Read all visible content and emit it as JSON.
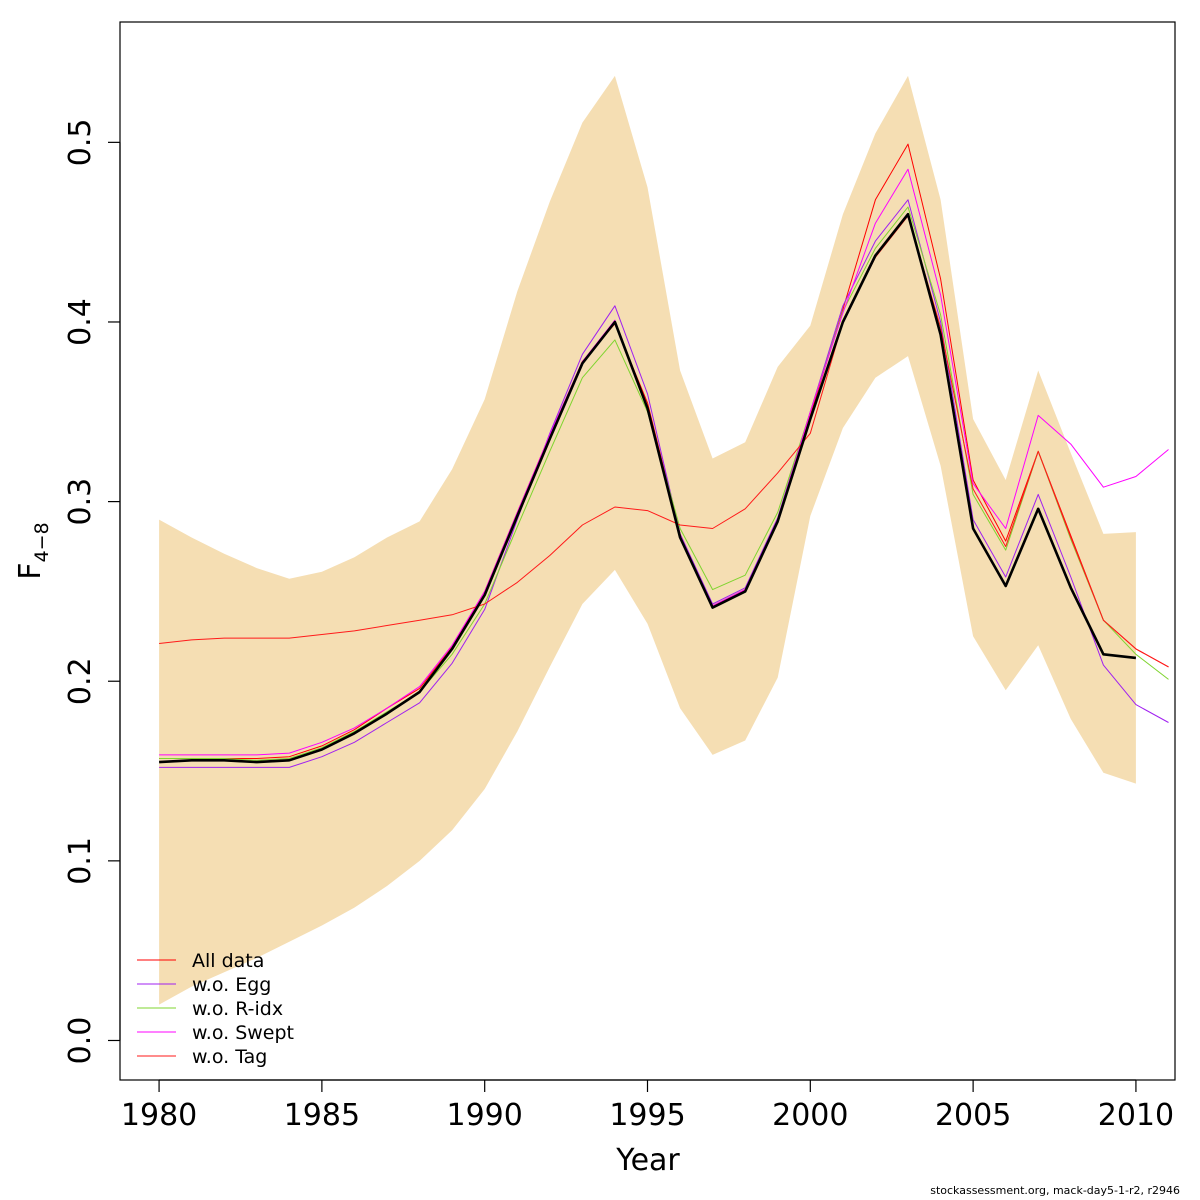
{
  "chart_data": {
    "type": "line",
    "xlabel": "Year",
    "ylabel": "F",
    "ylabel_bar": "‾",
    "ylabel_sub": "4−8",
    "xlim": [
      1978.8,
      2011.2
    ],
    "ylim": [
      -0.022,
      0.567
    ],
    "x_ticks": [
      1980,
      1985,
      1990,
      1995,
      2000,
      2005,
      2010
    ],
    "y_ticks": [
      0.0,
      0.1,
      0.2,
      0.3,
      0.4,
      0.5
    ],
    "y_tick_labels": [
      "0.0",
      "0.1",
      "0.2",
      "0.3",
      "0.4",
      "0.5"
    ],
    "grid": false,
    "legend_position": "bottom-left",
    "legend": [
      "All data",
      "w.o. Egg",
      "w.o. R-idx",
      "w.o. Swept",
      "w.o. Tag"
    ],
    "footer": "stockassessment.org, mack-day5-1-r2, r2946",
    "band": {
      "color": "#f5deb3",
      "x": [
        1980,
        1981,
        1982,
        1983,
        1984,
        1985,
        1986,
        1987,
        1988,
        1989,
        1990,
        1991,
        1992,
        1993,
        1994,
        1995,
        1996,
        1997,
        1998,
        1999,
        2000,
        2001,
        2002,
        2003,
        2004,
        2005,
        2006,
        2007,
        2008,
        2009,
        2010
      ],
      "upper": [
        0.29,
        0.28,
        0.271,
        0.263,
        0.257,
        0.261,
        0.269,
        0.28,
        0.289,
        0.318,
        0.357,
        0.417,
        0.467,
        0.511,
        0.537,
        0.475,
        0.373,
        0.324,
        0.333,
        0.375,
        0.398,
        0.46,
        0.505,
        0.537,
        0.468,
        0.346,
        0.312,
        0.373,
        0.327,
        0.282,
        0.283
      ],
      "lower": [
        0.02,
        0.03,
        0.038,
        0.046,
        0.055,
        0.064,
        0.074,
        0.086,
        0.1,
        0.117,
        0.14,
        0.172,
        0.208,
        0.243,
        0.262,
        0.232,
        0.185,
        0.159,
        0.167,
        0.202,
        0.292,
        0.341,
        0.369,
        0.381,
        0.32,
        0.225,
        0.195,
        0.22,
        0.179,
        0.149,
        0.143
      ]
    },
    "series": [
      {
        "color": "#000000",
        "width": 2.6,
        "x": [
          1980,
          1981,
          1982,
          1983,
          1984,
          1985,
          1986,
          1987,
          1988,
          1989,
          1990,
          1991,
          1992,
          1993,
          1994,
          1995,
          1996,
          1997,
          1998,
          1999,
          2000,
          2001,
          2002,
          2003,
          2004,
          2005,
          2006,
          2007,
          2008,
          2009,
          2010
        ],
        "values": [
          0.155,
          0.156,
          0.156,
          0.155,
          0.156,
          0.162,
          0.171,
          0.182,
          0.194,
          0.218,
          0.248,
          0.292,
          0.335,
          0.377,
          0.4,
          0.352,
          0.28,
          0.241,
          0.25,
          0.289,
          0.346,
          0.4,
          0.437,
          0.46,
          0.393,
          0.285,
          0.253,
          0.296,
          0.252,
          0.215,
          0.213
        ]
      },
      {
        "name": "All data",
        "color": "#ff0000",
        "width": 1,
        "x": [
          1980,
          1981,
          1982,
          1983,
          1984,
          1985,
          1986,
          1987,
          1988,
          1989,
          1990,
          1991,
          1992,
          1993,
          1994,
          1995,
          1996,
          1997,
          1998,
          1999,
          2000,
          2001,
          2002,
          2003,
          2004,
          2005,
          2006,
          2007,
          2008,
          2009,
          2010,
          2011
        ],
        "values": [
          0.157,
          0.157,
          0.157,
          0.157,
          0.158,
          0.164,
          0.173,
          0.185,
          0.196,
          0.219,
          0.25,
          0.294,
          0.337,
          0.378,
          0.399,
          0.355,
          0.282,
          0.242,
          0.251,
          0.29,
          0.348,
          0.407,
          0.468,
          0.499,
          0.424,
          0.312,
          0.278,
          0.328,
          0.281,
          0.234,
          0.218,
          0.208
        ]
      },
      {
        "name": "w.o. Egg",
        "color": "#a020f0",
        "width": 1,
        "x": [
          1980,
          1981,
          1982,
          1983,
          1984,
          1985,
          1986,
          1987,
          1988,
          1989,
          1990,
          1991,
          1992,
          1993,
          1994,
          1995,
          1996,
          1997,
          1998,
          1999,
          2000,
          2001,
          2002,
          2003,
          2004,
          2005,
          2006,
          2007,
          2008,
          2009,
          2010,
          2011
        ],
        "values": [
          0.152,
          0.152,
          0.152,
          0.152,
          0.152,
          0.158,
          0.166,
          0.177,
          0.188,
          0.21,
          0.24,
          0.29,
          0.338,
          0.382,
          0.409,
          0.36,
          0.282,
          0.243,
          0.252,
          0.291,
          0.35,
          0.409,
          0.445,
          0.468,
          0.4,
          0.29,
          0.258,
          0.304,
          0.258,
          0.209,
          0.187,
          0.177
        ]
      },
      {
        "name": "w.o. R-idx",
        "color": "#7fd42f",
        "width": 1,
        "x": [
          1980,
          1981,
          1982,
          1983,
          1984,
          1985,
          1986,
          1987,
          1988,
          1989,
          1990,
          1991,
          1992,
          1993,
          1994,
          1995,
          1996,
          1997,
          1998,
          1999,
          2000,
          2001,
          2002,
          2003,
          2004,
          2005,
          2006,
          2007,
          2008,
          2009,
          2010,
          2011
        ],
        "values": [
          0.157,
          0.157,
          0.157,
          0.156,
          0.157,
          0.163,
          0.172,
          0.183,
          0.194,
          0.215,
          0.243,
          0.286,
          0.328,
          0.369,
          0.39,
          0.35,
          0.285,
          0.251,
          0.259,
          0.294,
          0.35,
          0.406,
          0.441,
          0.464,
          0.404,
          0.304,
          0.273,
          0.328,
          0.279,
          0.234,
          0.215,
          0.201
        ]
      },
      {
        "name": "w.o. Swept",
        "color": "#ff00ff",
        "width": 1,
        "x": [
          1980,
          1981,
          1982,
          1983,
          1984,
          1985,
          1986,
          1987,
          1988,
          1989,
          1990,
          1991,
          1992,
          1993,
          1994,
          1995,
          1996,
          1997,
          1998,
          1999,
          2000,
          2001,
          2002,
          2003,
          2004,
          2005,
          2006,
          2007,
          2008,
          2009,
          2010,
          2011
        ],
        "values": [
          0.159,
          0.159,
          0.159,
          0.159,
          0.16,
          0.166,
          0.174,
          0.185,
          0.197,
          0.22,
          0.25,
          0.294,
          0.337,
          0.378,
          0.401,
          0.352,
          0.28,
          0.242,
          0.251,
          0.29,
          0.35,
          0.405,
          0.455,
          0.485,
          0.415,
          0.31,
          0.285,
          0.348,
          0.332,
          0.308,
          0.314,
          0.329
        ]
      },
      {
        "name": "w.o. Tag",
        "color": "#ff1a1a",
        "width": 1,
        "x": [
          1980,
          1981,
          1982,
          1983,
          1984,
          1985,
          1986,
          1987,
          1988,
          1989,
          1990,
          1991,
          1992,
          1993,
          1994,
          1995,
          1996,
          1997,
          1998,
          1999,
          2000,
          2001,
          2002,
          2003,
          2004,
          2005,
          2006,
          2007,
          2008,
          2009,
          2010,
          2011
        ],
        "values": [
          0.221,
          0.223,
          0.224,
          0.224,
          0.224,
          0.226,
          0.228,
          0.231,
          0.234,
          0.237,
          0.243,
          0.255,
          0.27,
          0.287,
          0.297,
          0.295,
          0.287,
          0.285,
          0.296,
          0.316,
          0.338,
          0.4,
          0.436,
          0.459,
          0.397,
          0.307,
          0.275,
          0.328,
          0.28,
          0.234,
          0.218,
          0.208
        ]
      }
    ]
  }
}
